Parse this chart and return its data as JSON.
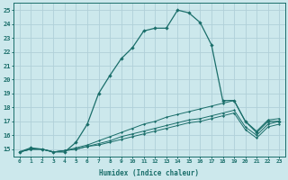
{
  "xlabel": "Humidex (Indice chaleur)",
  "bg_color": "#cce8ec",
  "grid_color": "#b0d0d8",
  "line_color": "#1a6e6a",
  "xlim": [
    -0.5,
    23.5
  ],
  "ylim": [
    14.5,
    25.5
  ],
  "x_ticks": [
    0,
    1,
    2,
    3,
    4,
    5,
    6,
    7,
    8,
    9,
    10,
    11,
    12,
    13,
    14,
    15,
    16,
    17,
    18,
    19,
    20,
    21,
    22,
    23
  ],
  "y_ticks": [
    15,
    16,
    17,
    18,
    19,
    20,
    21,
    22,
    23,
    24,
    25
  ],
  "series": [
    [
      14.8,
      15.1,
      15.0,
      14.8,
      14.8,
      15.5,
      16.8,
      19.0,
      20.3,
      21.5,
      22.3,
      23.5,
      23.7,
      23.7,
      25.0,
      24.8,
      24.1,
      22.5,
      18.5,
      18.5,
      17.0,
      16.2,
      17.0,
      17.0
    ],
    [
      14.8,
      15.0,
      15.0,
      14.8,
      14.9,
      15.1,
      15.3,
      15.6,
      15.9,
      16.2,
      16.5,
      16.8,
      17.0,
      17.3,
      17.5,
      17.7,
      17.9,
      18.1,
      18.3,
      18.5,
      17.0,
      16.3,
      17.1,
      17.2
    ],
    [
      14.8,
      15.0,
      15.0,
      14.8,
      14.9,
      15.0,
      15.2,
      15.4,
      15.6,
      15.9,
      16.1,
      16.3,
      16.5,
      16.7,
      16.9,
      17.1,
      17.2,
      17.4,
      17.6,
      17.8,
      16.6,
      16.0,
      16.8,
      17.0
    ],
    [
      14.8,
      15.0,
      15.0,
      14.8,
      14.9,
      15.0,
      15.2,
      15.3,
      15.5,
      15.7,
      15.9,
      16.1,
      16.3,
      16.5,
      16.7,
      16.9,
      17.0,
      17.2,
      17.4,
      17.6,
      16.4,
      15.8,
      16.6,
      16.8
    ]
  ]
}
